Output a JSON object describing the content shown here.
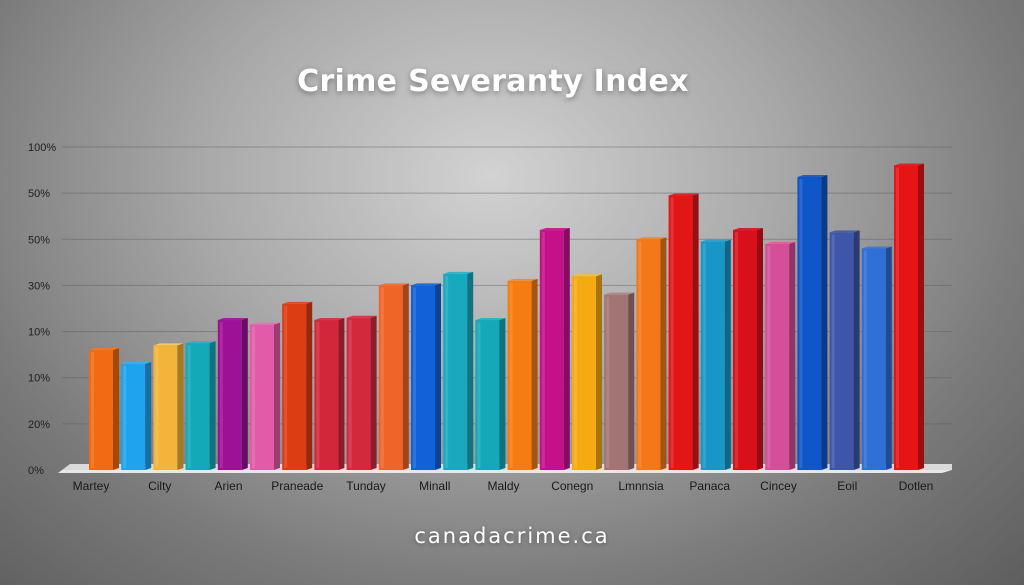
{
  "chart_data": {
    "type": "bar",
    "title": "Crime Severanty Index",
    "xlabel": "",
    "ylabel": "",
    "grid": true,
    "y_ticks": [
      {
        "label": "100%",
        "level": 7
      },
      {
        "label": "50%",
        "level": 6
      },
      {
        "label": "50%",
        "level": 5
      },
      {
        "label": "30%",
        "level": 4
      },
      {
        "label": "10%",
        "level": 3
      },
      {
        "label": "10%",
        "level": 2
      },
      {
        "label": "20%",
        "level": 1
      },
      {
        "label": "0%",
        "level": 0
      }
    ],
    "categories": [
      "Martey",
      "Cilty",
      "Arien",
      "Praneade",
      "Tunday",
      "Minall",
      "Maldy",
      "Conegn",
      "Lmnnsia",
      "Panaca",
      "Cincey",
      "Eoil",
      "Dotlen"
    ],
    "bars": [
      {
        "value": 2.6,
        "color": "#f26a12"
      },
      {
        "value": 2.3,
        "color": "#1fa3ee"
      },
      {
        "value": 2.7,
        "color": "#f2b43a"
      },
      {
        "value": 2.75,
        "color": "#13a9b8"
      },
      {
        "value": 3.25,
        "color": "#9c1196"
      },
      {
        "value": 3.15,
        "color": "#e35aa8"
      },
      {
        "value": 3.6,
        "color": "#dc3d12"
      },
      {
        "value": 3.25,
        "color": "#d4263a"
      },
      {
        "value": 3.3,
        "color": "#d4283c"
      },
      {
        "value": 4.0,
        "color": "#f06428"
      },
      {
        "value": 4.0,
        "color": "#1162d8"
      },
      {
        "value": 4.25,
        "color": "#17a9bd"
      },
      {
        "value": 3.25,
        "color": "#14a9b9"
      },
      {
        "value": 4.1,
        "color": "#f57c12"
      },
      {
        "value": 5.2,
        "color": "#c4118a"
      },
      {
        "value": 4.2,
        "color": "#f6aa12"
      },
      {
        "value": 3.8,
        "color": "#a37474"
      },
      {
        "value": 5.0,
        "color": "#f47818"
      },
      {
        "value": 5.95,
        "color": "#e31616"
      },
      {
        "value": 4.95,
        "color": "#1896c6"
      },
      {
        "value": 5.2,
        "color": "#d9101c"
      },
      {
        "value": 4.9,
        "color": "#d44f98"
      },
      {
        "value": 6.35,
        "color": "#0f56c8"
      },
      {
        "value": 5.15,
        "color": "#3e56a8"
      },
      {
        "value": 4.8,
        "color": "#2f6fd6"
      },
      {
        "value": 6.6,
        "color": "#e61414"
      }
    ]
  },
  "footer": {
    "text": "canadacrime.ca"
  }
}
